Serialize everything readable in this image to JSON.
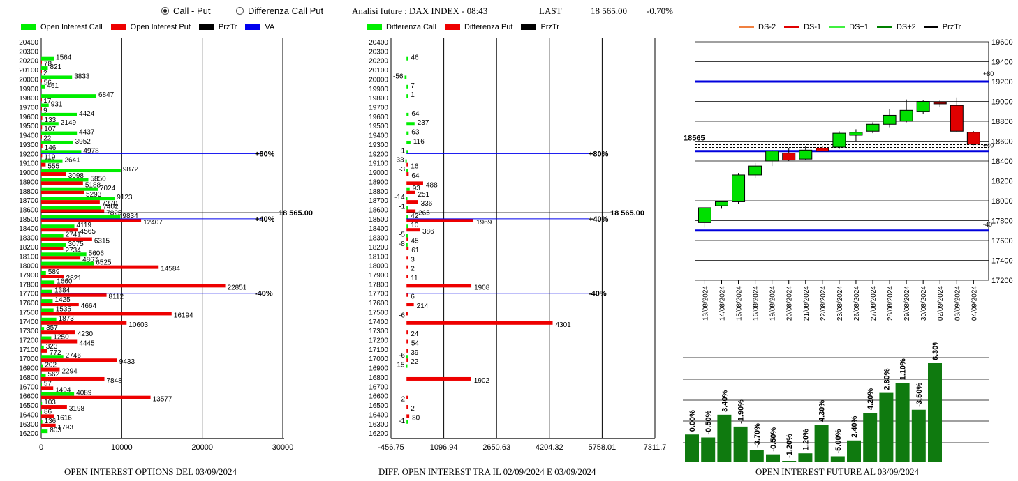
{
  "controls": {
    "radio_call_put": "Call - Put",
    "radio_diff": "Differenza Call Put",
    "selected": "call_put"
  },
  "header": {
    "analysis": "Analisi future : DAX INDEX - 08:43",
    "last_label": "LAST",
    "last_value": "18 565.00",
    "change": "-0.70%"
  },
  "colors": {
    "call": "#00ee00",
    "put": "#ee0000",
    "prztr": "#000000",
    "va": "#0000ee",
    "future_bar": "#0f7a0f",
    "candle_up": "#00e000",
    "candle_down": "#e00000"
  },
  "left_chart": {
    "legend": [
      "Open Interest Call",
      "Open Interest Put",
      "PrzTr",
      "VA"
    ],
    "footer": "OPEN INTEREST OPTIONS DEL 03/09/2024",
    "x_ticks": [
      "0",
      "10000",
      "20000",
      "30000"
    ],
    "markers": [
      {
        "level": 19200,
        "label": "+80%"
      },
      {
        "level": 18500,
        "label": "+40%"
      },
      {
        "level": 17700,
        "label": "-40%"
      }
    ],
    "price_label": "18 565.00"
  },
  "middle_chart": {
    "legend": [
      "Differenza Call",
      "Differenza Put",
      "PrzTr"
    ],
    "footer": "DIFF. OPEN INTEREST TRA IL 02/09/2024 E 03/09/2024",
    "x_ticks": [
      "-456.75",
      "1096.94",
      "2650.63",
      "4204.32",
      "5758.01",
      "7311.7"
    ],
    "markers": [
      {
        "level": 19200,
        "label": "+80%"
      },
      {
        "level": 18500,
        "label": "+40%"
      },
      {
        "level": 17700,
        "label": "-40%"
      }
    ],
    "price_label": "18 565.00"
  },
  "right_chart": {
    "legend": [
      "DS-2",
      "DS-1",
      "DS+1",
      "DS+2",
      "PrzTr"
    ],
    "legend_colors": [
      "#f08040",
      "#e00000",
      "#40f040",
      "#008000",
      "#000000"
    ],
    "price_label": "18565",
    "annotations": [
      "+80",
      "+40",
      "-40"
    ],
    "footer": "OPEN INTEREST FUTURE AL 03/09/2024"
  },
  "chart_data": [
    {
      "type": "bar",
      "orientation": "horizontal",
      "xlim": [
        0,
        30000
      ],
      "categories": [
        20400,
        20300,
        20200,
        20100,
        20000,
        19900,
        19800,
        19700,
        19600,
        19500,
        19400,
        19300,
        19200,
        19100,
        19000,
        18900,
        18800,
        18700,
        18600,
        18500,
        18400,
        18300,
        18200,
        18100,
        18000,
        17900,
        17800,
        17700,
        17600,
        17500,
        17400,
        17300,
        17200,
        17100,
        17000,
        16900,
        16800,
        16700,
        16600,
        16500,
        16400,
        16300,
        16200
      ],
      "series": [
        {
          "name": "Open Interest Call",
          "values": [
            null,
            null,
            1564,
            821,
            3833,
            461,
            6847,
            931,
            4424,
            2149,
            4437,
            3952,
            4978,
            2641,
            9872,
            5850,
            7024,
            9123,
            7402,
            9834,
            4119,
            2741,
            3075,
            5606,
            6525,
            589,
            1660,
            1384,
            1425,
            1535,
            1873,
            357,
            1250,
            323,
            2746,
            202,
            562,
            57,
            4089,
            103,
            86,
            136,
            803
          ]
        },
        {
          "name": "Open Interest Put",
          "values": [
            null,
            null,
            78,
            2,
            56,
            null,
            17,
            9,
            133,
            107,
            22,
            146,
            119,
            555,
            3098,
            5188,
            5293,
            7270,
            7825,
            12407,
            4565,
            6315,
            2734,
            4867,
            14584,
            2821,
            22851,
            8112,
            4664,
            16194,
            10603,
            4230,
            4445,
            772,
            9433,
            2294,
            7848,
            1494,
            13577,
            3198,
            1616,
            1793,
            null
          ]
        }
      ]
    },
    {
      "type": "bar",
      "orientation": "horizontal",
      "xlim": [
        -456.75,
        7311.7
      ],
      "categories": [
        20400,
        20300,
        20200,
        20100,
        20000,
        19900,
        19800,
        19700,
        19600,
        19500,
        19400,
        19300,
        19200,
        19100,
        19000,
        18900,
        18800,
        18700,
        18600,
        18500,
        18400,
        18300,
        18200,
        18100,
        18000,
        17900,
        17800,
        17700,
        17600,
        17500,
        17400,
        17300,
        17200,
        17100,
        17000,
        16900,
        16800,
        16700,
        16600,
        16500,
        16400,
        16300,
        16200
      ],
      "series": [
        {
          "name": "Differenza Call",
          "values": [
            null,
            null,
            46,
            null,
            -56,
            7,
            1,
            null,
            64,
            237,
            63,
            116,
            -1,
            -33,
            -3,
            null,
            93,
            -14,
            -1,
            42,
            10,
            -5,
            -8,
            null,
            null,
            null,
            null,
            null,
            null,
            null,
            null,
            null,
            null,
            null,
            -6,
            -15,
            null,
            null,
            null,
            null,
            null,
            -1,
            null
          ]
        },
        {
          "name": "Differenza Put",
          "values": [
            null,
            null,
            null,
            null,
            null,
            null,
            null,
            null,
            null,
            null,
            null,
            null,
            null,
            16,
            64,
            488,
            251,
            336,
            265,
            1969,
            386,
            45,
            61,
            3,
            2,
            11,
            1908,
            6,
            214,
            -6,
            4301,
            24,
            54,
            39,
            22,
            null,
            1902,
            null,
            -2,
            2,
            80,
            null,
            null
          ]
        }
      ]
    },
    {
      "type": "candlestick",
      "x": [
        "13/08/2024",
        "14/08/2024",
        "15/08/2024",
        "16/08/2024",
        "19/08/2024",
        "20/08/2024",
        "21/08/2024",
        "22/08/2024",
        "23/08/2024",
        "26/08/2024",
        "27/08/2024",
        "28/08/2024",
        "29/08/2024",
        "30/08/2024",
        "02/09/2024",
        "03/09/2024",
        "04/09/2024"
      ],
      "ohlc": [
        [
          17780,
          17930,
          17730,
          17930
        ],
        [
          17950,
          18000,
          17920,
          17990
        ],
        [
          17990,
          18280,
          17970,
          18260
        ],
        [
          18260,
          18380,
          18230,
          18350
        ],
        [
          18400,
          18510,
          18350,
          18500
        ],
        [
          18480,
          18530,
          18400,
          18410
        ],
        [
          18420,
          18550,
          18410,
          18510
        ],
        [
          18530,
          18550,
          18500,
          18500
        ],
        [
          18540,
          18700,
          18520,
          18680
        ],
        [
          18660,
          18720,
          18600,
          18690
        ],
        [
          18700,
          18790,
          18680,
          18770
        ],
        [
          18770,
          18920,
          18740,
          18860
        ],
        [
          18800,
          19020,
          18790,
          18910
        ],
        [
          18900,
          19010,
          18870,
          19000
        ],
        [
          18990,
          19010,
          18940,
          18980
        ],
        [
          18960,
          19040,
          18690,
          18700
        ],
        [
          18690,
          18700,
          18560,
          18570
        ]
      ],
      "levels": [
        19200,
        18500,
        17700
      ],
      "price_line": 18565,
      "ylim": [
        17200,
        19600
      ],
      "y_ticks": [
        19600,
        19400,
        19200,
        19000,
        18800,
        18600,
        18400,
        18200,
        18000,
        17800,
        17600,
        17400,
        17200
      ]
    },
    {
      "type": "bar",
      "values": [
        0.0,
        -0.5,
        3.4,
        -1.9,
        -3.7,
        -0.5,
        -1.2,
        1.2,
        4.3,
        -5.0,
        2.4,
        4.2,
        2.8,
        1.1,
        -3.5,
        6.3
      ],
      "labels": [
        "0.00%",
        "-0.50%",
        "3.40%",
        "-1.90%",
        "-3.70%",
        "-0.50%",
        "-1.20%",
        "1.20%",
        "4.30%",
        "-5.00%",
        "2.40%",
        "4.20%",
        "2.80%",
        "1.10%",
        "-3.50%",
        "6.30%"
      ],
      "heights": [
        0.28,
        0.25,
        0.48,
        0.36,
        0.12,
        0.08,
        0.01,
        0.09,
        0.38,
        0.06,
        0.22,
        0.5,
        0.7,
        0.8,
        0.53,
        1.0
      ]
    }
  ]
}
